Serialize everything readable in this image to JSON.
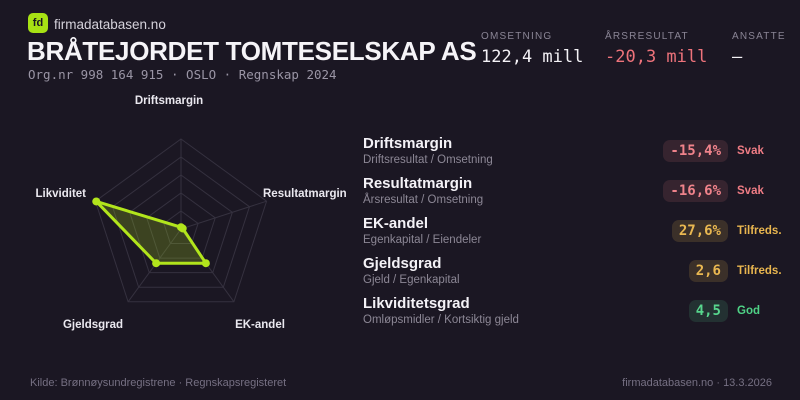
{
  "theme": {
    "background": "#1b1723",
    "accent_lime": "#a7e214",
    "red": "#ee737b",
    "yellow": "#e9b64f",
    "green": "#4fd286"
  },
  "header": {
    "logo_text": "fd",
    "brand": "firmadatabasen.no",
    "title": "BRÅTEJORDET TOMTESELSKAP AS",
    "meta": "Org.nr 998 164 915  ·  OSLO  ·  Regnskap 2024"
  },
  "topstats": [
    {
      "label": "OMSETNING",
      "value": "122,4 mill",
      "value_color": "#f4f2f6"
    },
    {
      "label": "ÅRSRESULTAT",
      "value": "-20,3 mill",
      "value_color": "#ee737b"
    },
    {
      "label": "ANSATTE",
      "value": "–",
      "value_color": "#f4f2f6"
    }
  ],
  "chart_data": {
    "type": "radar",
    "categories": [
      "Driftsmargin",
      "Resultatmargin",
      "EK-andel",
      "Gjeldsgrad",
      "Likviditet"
    ],
    "values_normalized": [
      0.02,
      0.02,
      0.47,
      0.47,
      0.99
    ],
    "axis_range": [
      0,
      1
    ],
    "grid_levels": 5,
    "legend": "none",
    "stroke_color": "#b2e51c",
    "fill_color": "rgba(178,229,28,0.22)",
    "grid_color": "#35313f"
  },
  "metrics": [
    {
      "title": "Driftsmargin",
      "formula": "Driftsresultat / Omsetning",
      "value": "-15,4%",
      "status": "Svak",
      "tone": "red"
    },
    {
      "title": "Resultatmargin",
      "formula": "Årsresultat / Omsetning",
      "value": "-16,6%",
      "status": "Svak",
      "tone": "red"
    },
    {
      "title": "EK-andel",
      "formula": "Egenkapital / Eiendeler",
      "value": "27,6%",
      "status": "Tilfreds.",
      "tone": "yellow"
    },
    {
      "title": "Gjeldsgrad",
      "formula": "Gjeld / Egenkapital",
      "value": "2,6",
      "status": "Tilfreds.",
      "tone": "yellow"
    },
    {
      "title": "Likviditetsgrad",
      "formula": "Omløpsmidler / Kortsiktig gjeld",
      "value": "4,5",
      "status": "God",
      "tone": "green"
    }
  ],
  "footer": {
    "left": "Kilde: Brønnøysundregistrene · Regnskapsregisteret",
    "right": "firmadatabasen.no · 13.3.2026"
  }
}
